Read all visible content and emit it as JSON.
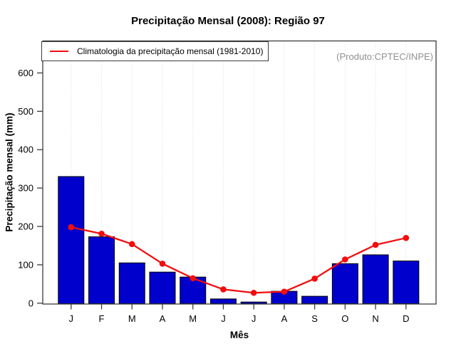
{
  "title": "Precipitação Mensal (2008): Região 97",
  "legend": {
    "label": "Climatologia da precipitação mensal (1981-2010)"
  },
  "watermark": "(Produto:CPTEC/INPE)",
  "chart_data": {
    "type": "bar",
    "categories": [
      "J",
      "F",
      "M",
      "A",
      "M",
      "J",
      "J",
      "A",
      "S",
      "O",
      "N",
      "D"
    ],
    "series": [
      {
        "name": "Precipitação mensal 2008",
        "type": "bar",
        "color": "#0000CD",
        "values": [
          330,
          173,
          105,
          81,
          68,
          11,
          3,
          31,
          18,
          103,
          126,
          110
        ]
      },
      {
        "name": "Climatologia da precipitação mensal (1981-2010)",
        "type": "line",
        "color": "#F20D0D",
        "values": [
          198,
          181,
          154,
          103,
          65,
          36,
          27,
          30,
          64,
          114,
          152,
          170
        ]
      }
    ],
    "title": "Precipitação Mensal (2008): Região 97",
    "xlabel": "Mês",
    "ylabel": "Precipitação mensal (mm)",
    "ylim": [
      0,
      680
    ],
    "yticks": [
      0,
      100,
      200,
      300,
      400,
      500,
      600
    ],
    "grid": "vertical-dotted-gray",
    "legend_position": "top-left"
  }
}
